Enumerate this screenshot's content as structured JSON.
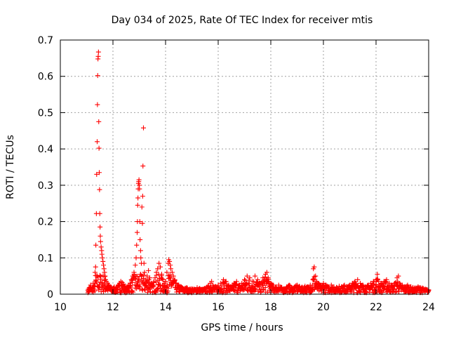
{
  "chart_data": {
    "type": "scatter",
    "title": "Day 034 of 2025, Rate Of TEC Index for receiver mtis",
    "xlabel": "GPS time / hours",
    "ylabel": "ROTI / TECUs",
    "xlim": [
      10,
      24
    ],
    "ylim": [
      0,
      0.7
    ],
    "xticks": [
      10,
      12,
      14,
      16,
      18,
      20,
      22,
      24
    ],
    "xtick_labels": [
      "10",
      "12",
      "14",
      "16",
      "18",
      "20",
      "22",
      "24"
    ],
    "yticks": [
      0,
      0.1,
      0.2,
      0.3,
      0.4,
      0.5,
      0.6,
      0.7
    ],
    "ytick_labels": [
      "0",
      "0.1",
      "0.2",
      "0.3",
      "0.4",
      "0.5",
      "0.6",
      "0.7"
    ],
    "grid": true,
    "marker": "+",
    "color": "#ff0000",
    "series": [
      {
        "name": "ROTI",
        "points": [
          [
            11.05,
            0.01
          ],
          [
            11.1,
            0.018
          ],
          [
            11.15,
            0.025
          ],
          [
            11.2,
            0.014
          ],
          [
            11.25,
            0.03
          ],
          [
            11.3,
            0.022
          ],
          [
            11.32,
            0.06
          ],
          [
            11.34,
            0.075
          ],
          [
            11.35,
            0.135
          ],
          [
            11.37,
            0.222
          ],
          [
            11.38,
            0.33
          ],
          [
            11.4,
            0.42
          ],
          [
            11.41,
            0.522
          ],
          [
            11.42,
            0.602
          ],
          [
            11.43,
            0.648
          ],
          [
            11.44,
            0.655
          ],
          [
            11.45,
            0.667
          ],
          [
            11.46,
            0.475
          ],
          [
            11.47,
            0.402
          ],
          [
            11.48,
            0.335
          ],
          [
            11.49,
            0.288
          ],
          [
            11.5,
            0.222
          ],
          [
            11.51,
            0.185
          ],
          [
            11.52,
            0.16
          ],
          [
            11.53,
            0.145
          ],
          [
            11.55,
            0.13
          ],
          [
            11.57,
            0.12
          ],
          [
            11.58,
            0.11
          ],
          [
            11.6,
            0.1
          ],
          [
            11.62,
            0.09
          ],
          [
            11.64,
            0.08
          ],
          [
            11.66,
            0.07
          ],
          [
            11.68,
            0.06
          ],
          [
            11.7,
            0.05
          ],
          [
            11.72,
            0.04
          ],
          [
            11.75,
            0.035
          ],
          [
            11.8,
            0.03
          ],
          [
            11.85,
            0.025
          ],
          [
            11.9,
            0.02
          ],
          [
            11.95,
            0.018
          ],
          [
            12.0,
            0.015
          ],
          [
            12.05,
            0.02
          ],
          [
            12.1,
            0.012
          ],
          [
            12.15,
            0.018
          ],
          [
            12.2,
            0.025
          ],
          [
            12.25,
            0.03
          ],
          [
            12.3,
            0.035
          ],
          [
            12.35,
            0.032
          ],
          [
            12.4,
            0.028
          ],
          [
            12.45,
            0.02
          ],
          [
            12.5,
            0.015
          ],
          [
            12.55,
            0.02
          ],
          [
            12.6,
            0.025
          ],
          [
            12.65,
            0.03
          ],
          [
            12.7,
            0.04
          ],
          [
            12.75,
            0.05
          ],
          [
            12.8,
            0.06
          ],
          [
            12.85,
            0.08
          ],
          [
            12.88,
            0.1
          ],
          [
            12.9,
            0.135
          ],
          [
            12.92,
            0.17
          ],
          [
            12.93,
            0.2
          ],
          [
            12.94,
            0.245
          ],
          [
            12.95,
            0.265
          ],
          [
            12.96,
            0.29
          ],
          [
            12.97,
            0.305
          ],
          [
            12.98,
            0.31
          ],
          [
            12.99,
            0.315
          ],
          [
            13.0,
            0.3
          ],
          [
            13.01,
            0.29
          ],
          [
            13.02,
            0.2
          ],
          [
            13.03,
            0.15
          ],
          [
            13.05,
            0.12
          ],
          [
            13.06,
            0.1
          ],
          [
            13.08,
            0.085
          ],
          [
            13.1,
            0.24
          ],
          [
            13.12,
            0.195
          ],
          [
            13.13,
            0.27
          ],
          [
            13.14,
            0.353
          ],
          [
            13.16,
            0.458
          ],
          [
            13.18,
            0.085
          ],
          [
            13.2,
            0.06
          ],
          [
            13.25,
            0.04
          ],
          [
            13.3,
            0.05
          ],
          [
            13.35,
            0.065
          ],
          [
            13.4,
            0.045
          ],
          [
            13.45,
            0.03
          ],
          [
            13.5,
            0.025
          ],
          [
            13.55,
            0.035
          ],
          [
            13.6,
            0.045
          ],
          [
            13.65,
            0.06
          ],
          [
            13.7,
            0.07
          ],
          [
            13.75,
            0.085
          ],
          [
            13.8,
            0.075
          ],
          [
            13.85,
            0.055
          ],
          [
            13.9,
            0.04
          ],
          [
            13.95,
            0.03
          ],
          [
            14.0,
            0.035
          ],
          [
            14.05,
            0.06
          ],
          [
            14.1,
            0.085
          ],
          [
            14.12,
            0.095
          ],
          [
            14.15,
            0.09
          ],
          [
            14.18,
            0.08
          ],
          [
            14.2,
            0.07
          ],
          [
            14.25,
            0.06
          ],
          [
            14.3,
            0.05
          ],
          [
            14.35,
            0.04
          ],
          [
            14.4,
            0.03
          ],
          [
            14.5,
            0.025
          ],
          [
            14.6,
            0.02
          ],
          [
            14.7,
            0.015
          ],
          [
            14.8,
            0.018
          ],
          [
            14.9,
            0.012
          ],
          [
            15.0,
            0.015
          ],
          [
            15.1,
            0.012
          ],
          [
            15.2,
            0.018
          ],
          [
            15.3,
            0.015
          ],
          [
            15.4,
            0.012
          ],
          [
            15.5,
            0.016
          ],
          [
            15.6,
            0.02
          ],
          [
            15.7,
            0.03
          ],
          [
            15.75,
            0.035
          ],
          [
            15.8,
            0.025
          ],
          [
            15.9,
            0.02
          ],
          [
            16.0,
            0.025
          ],
          [
            16.1,
            0.03
          ],
          [
            16.2,
            0.04
          ],
          [
            16.3,
            0.035
          ],
          [
            16.4,
            0.025
          ],
          [
            16.5,
            0.02
          ],
          [
            16.6,
            0.03
          ],
          [
            16.7,
            0.035
          ],
          [
            16.8,
            0.025
          ],
          [
            16.9,
            0.03
          ],
          [
            17.0,
            0.04
          ],
          [
            17.1,
            0.05
          ],
          [
            17.2,
            0.045
          ],
          [
            17.3,
            0.035
          ],
          [
            17.4,
            0.05
          ],
          [
            17.5,
            0.04
          ],
          [
            17.6,
            0.03
          ],
          [
            17.7,
            0.045
          ],
          [
            17.8,
            0.055
          ],
          [
            17.85,
            0.06
          ],
          [
            17.9,
            0.045
          ],
          [
            18.0,
            0.03
          ],
          [
            18.1,
            0.025
          ],
          [
            18.2,
            0.02
          ],
          [
            18.3,
            0.025
          ],
          [
            18.4,
            0.018
          ],
          [
            18.5,
            0.015
          ],
          [
            18.6,
            0.02
          ],
          [
            18.7,
            0.025
          ],
          [
            18.8,
            0.018
          ],
          [
            18.9,
            0.02
          ],
          [
            19.0,
            0.025
          ],
          [
            19.1,
            0.02
          ],
          [
            19.2,
            0.018
          ],
          [
            19.3,
            0.022
          ],
          [
            19.4,
            0.02
          ],
          [
            19.5,
            0.025
          ],
          [
            19.6,
            0.04
          ],
          [
            19.62,
            0.07
          ],
          [
            19.65,
            0.075
          ],
          [
            19.7,
            0.05
          ],
          [
            19.75,
            0.035
          ],
          [
            19.8,
            0.03
          ],
          [
            19.9,
            0.025
          ],
          [
            20.0,
            0.03
          ],
          [
            20.1,
            0.025
          ],
          [
            20.2,
            0.02
          ],
          [
            20.3,
            0.025
          ],
          [
            20.4,
            0.02
          ],
          [
            20.5,
            0.018
          ],
          [
            20.6,
            0.022
          ],
          [
            20.7,
            0.02
          ],
          [
            20.8,
            0.025
          ],
          [
            20.9,
            0.02
          ],
          [
            21.0,
            0.025
          ],
          [
            21.1,
            0.03
          ],
          [
            21.2,
            0.035
          ],
          [
            21.3,
            0.04
          ],
          [
            21.4,
            0.03
          ],
          [
            21.5,
            0.025
          ],
          [
            21.6,
            0.02
          ],
          [
            21.7,
            0.025
          ],
          [
            21.8,
            0.03
          ],
          [
            21.9,
            0.035
          ],
          [
            22.0,
            0.04
          ],
          [
            22.05,
            0.055
          ],
          [
            22.1,
            0.035
          ],
          [
            22.2,
            0.03
          ],
          [
            22.3,
            0.035
          ],
          [
            22.4,
            0.04
          ],
          [
            22.5,
            0.03
          ],
          [
            22.6,
            0.025
          ],
          [
            22.7,
            0.03
          ],
          [
            22.8,
            0.045
          ],
          [
            22.85,
            0.05
          ],
          [
            22.9,
            0.03
          ],
          [
            23.0,
            0.025
          ],
          [
            23.1,
            0.02
          ],
          [
            23.2,
            0.025
          ],
          [
            23.3,
            0.02
          ],
          [
            23.4,
            0.018
          ],
          [
            23.5,
            0.015
          ],
          [
            23.6,
            0.02
          ],
          [
            23.7,
            0.018
          ],
          [
            23.8,
            0.015
          ],
          [
            23.9,
            0.012
          ],
          [
            24.0,
            0.01
          ]
        ]
      }
    ]
  }
}
